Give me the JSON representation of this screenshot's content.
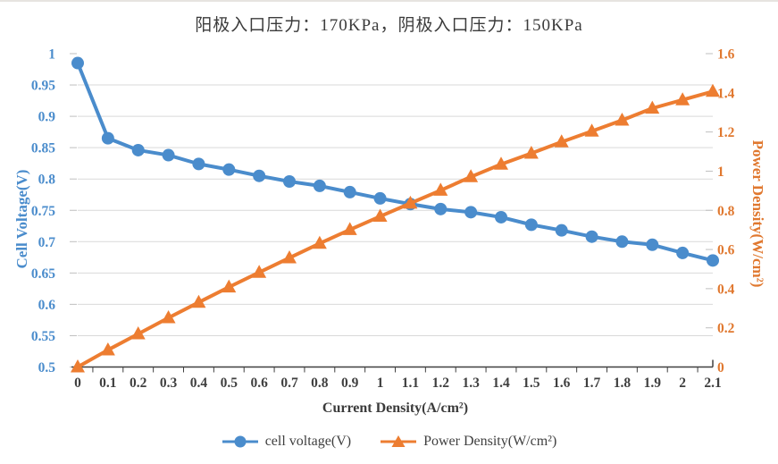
{
  "chart_data": {
    "type": "line",
    "title": "阳极入口压力：170KPa，阴极入口压力：150KPa",
    "xlabel": "Current Density(A/cm²)",
    "ylabel_left": "Cell Voltage(V)",
    "ylabel_right": "Power Density(W/cm²)",
    "x": [
      0,
      0.1,
      0.2,
      0.3,
      0.4,
      0.5,
      0.6,
      0.7,
      0.8,
      0.9,
      1,
      1.1,
      1.2,
      1.3,
      1.4,
      1.5,
      1.6,
      1.7,
      1.8,
      1.9,
      2,
      2.1
    ],
    "xticklabels": [
      "0",
      "0.1",
      "0.2",
      "0.3",
      "0.4",
      "0.5",
      "0.6",
      "0.7",
      "0.8",
      "0.9",
      "1",
      "1.1",
      "1.2",
      "1.3",
      "1.4",
      "1.5",
      "1.6",
      "1.7",
      "1.8",
      "1.9",
      "2",
      "2.1"
    ],
    "ylim_left": [
      0.5,
      1
    ],
    "ylim_right": [
      0,
      1.6
    ],
    "yticks_left": [
      1,
      0.95,
      0.9,
      0.85,
      0.8,
      0.75,
      0.7,
      0.65,
      0.6,
      0.55,
      0.5
    ],
    "yticklabels_left": [
      "1",
      "0.95",
      "0.9",
      "0.85",
      "0.8",
      "0.75",
      "0.7",
      "0.65",
      "0.6",
      "0.55",
      "0.5"
    ],
    "yticks_right": [
      1.6,
      1.4,
      1.2,
      1,
      0.8,
      0.6,
      0.4,
      0.2,
      0
    ],
    "yticklabels_right": [
      "1.6",
      "1.4",
      "1.2",
      "1",
      "0.8",
      "0.6",
      "0.4",
      "0.2",
      "0"
    ],
    "grid": "horizontal",
    "legend_position": "bottom",
    "series": [
      {
        "name": "cell voltage(V)",
        "axis": "left",
        "marker": "circle",
        "color": "#4A8CCC",
        "values": [
          0.985,
          0.865,
          0.846,
          0.838,
          0.824,
          0.815,
          0.805,
          0.796,
          0.789,
          0.779,
          0.769,
          0.76,
          0.752,
          0.747,
          0.739,
          0.727,
          0.718,
          0.708,
          0.7,
          0.695,
          0.682,
          0.67
        ]
      },
      {
        "name": "Power Density(W/cm²)",
        "axis": "right",
        "marker": "triangle",
        "color": "#ED7D31",
        "values": [
          0,
          0.087,
          0.169,
          0.251,
          0.33,
          0.408,
          0.483,
          0.557,
          0.631,
          0.701,
          0.769,
          0.836,
          0.902,
          0.971,
          1.035,
          1.091,
          1.149,
          1.204,
          1.26,
          1.321,
          1.364,
          1.407
        ]
      }
    ],
    "colors": {
      "left_axis_text": "#4A8CCC",
      "right_axis_text": "#E0782F",
      "x_axis_text": "#3F3F3F",
      "gridline": "#D9D9D9",
      "axis_line": "#404040",
      "tick_dash": "#BFBFBF"
    }
  }
}
